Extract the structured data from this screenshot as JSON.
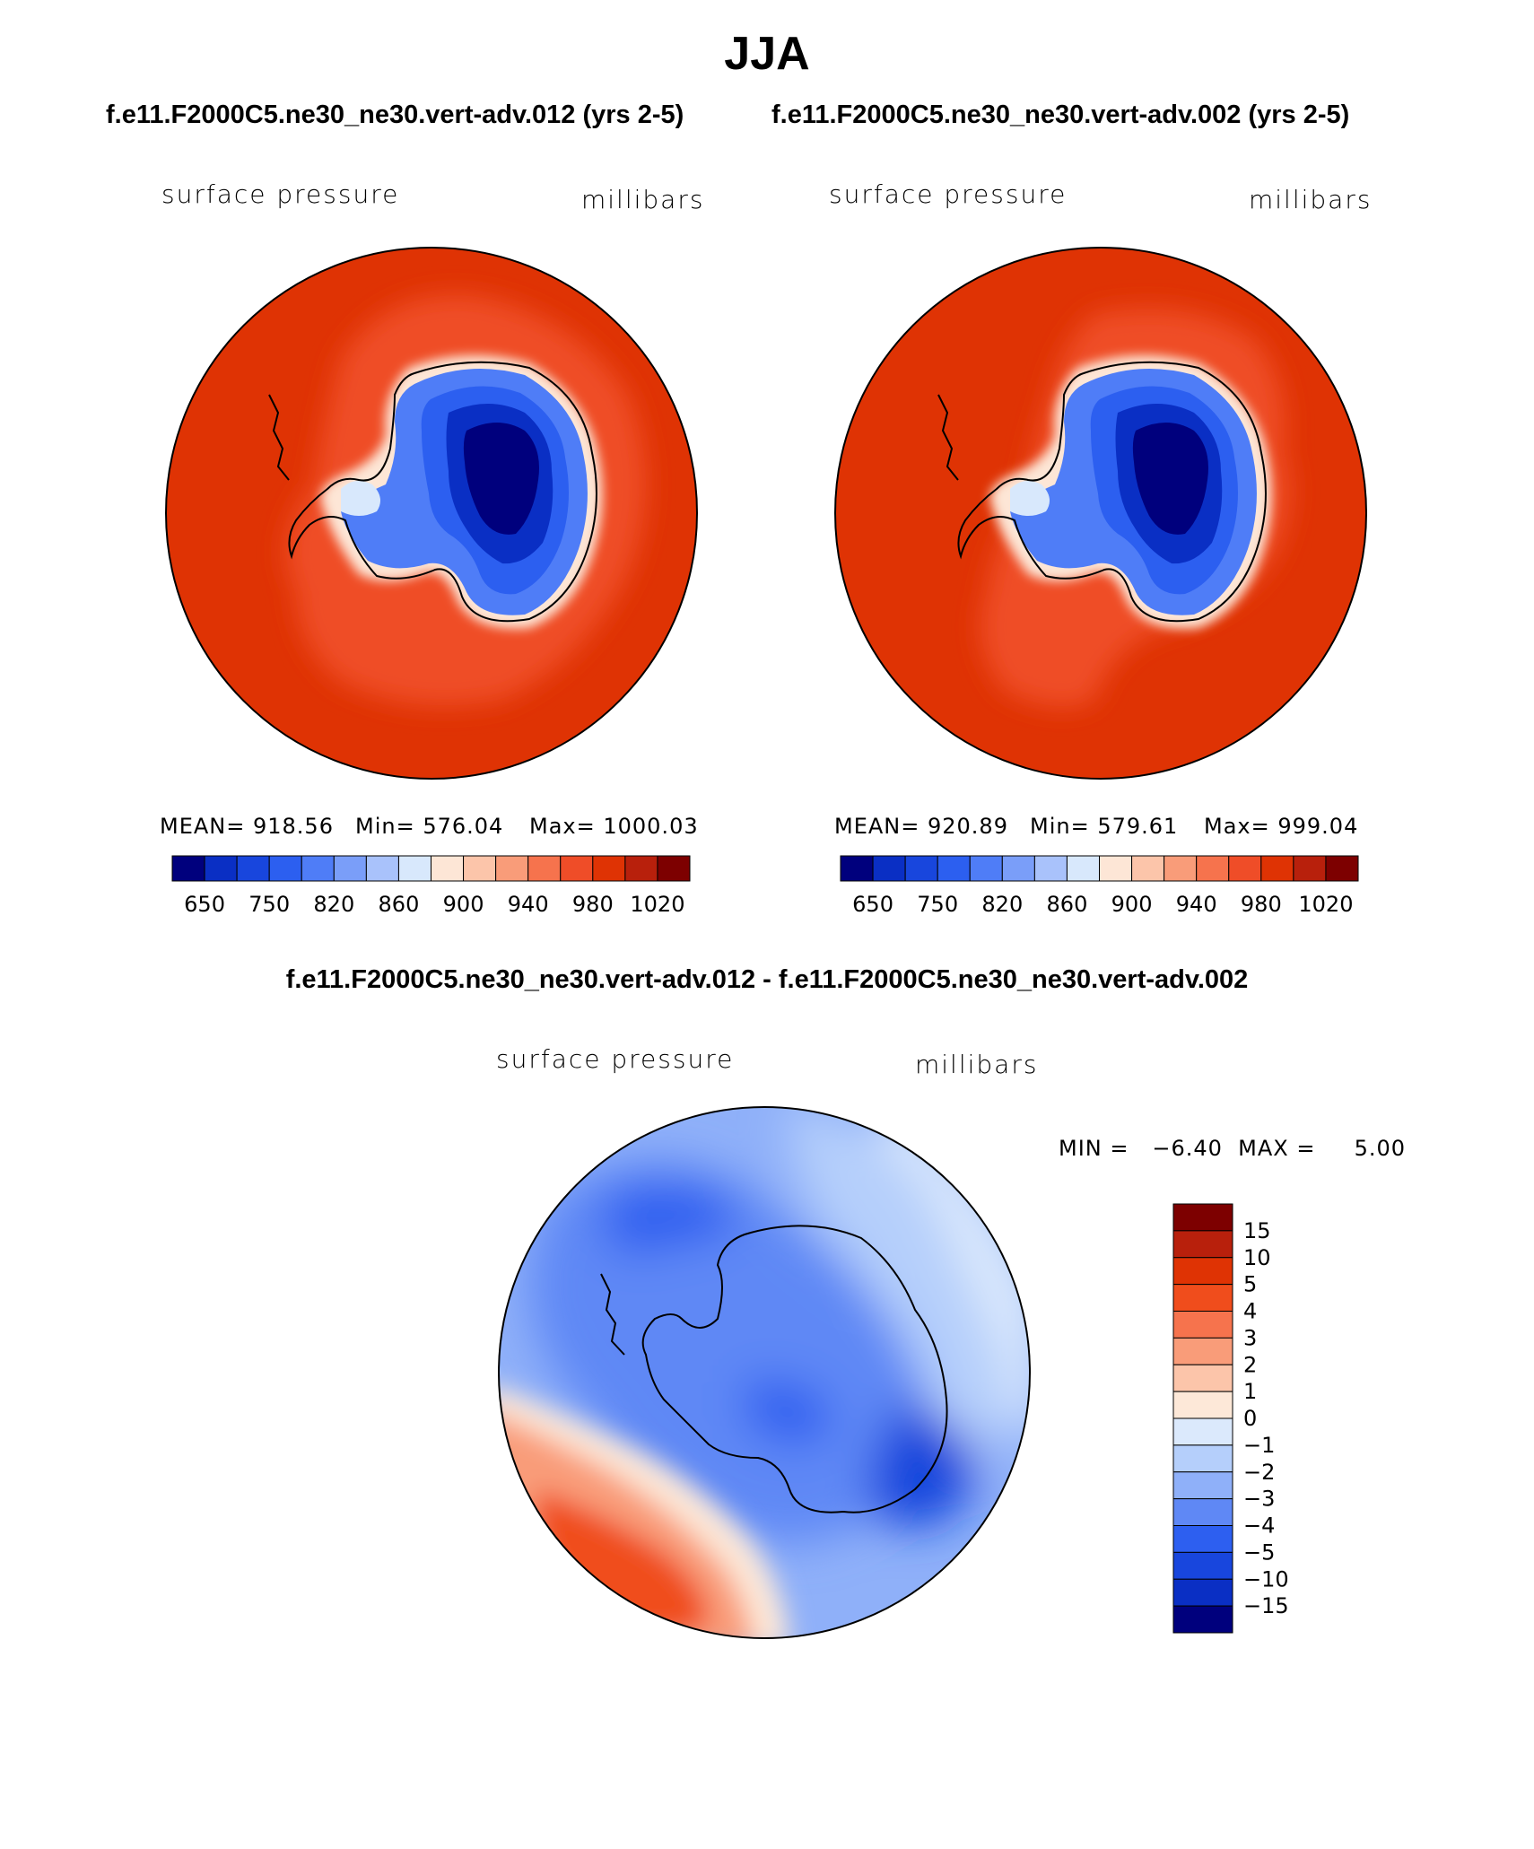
{
  "title": "JJA",
  "subtitle_left": "f.e11.F2000C5.ne30_ne30.vert-adv.012 (yrs 2-5)",
  "subtitle_right": "f.e11.F2000C5.ne30_ne30.vert-adv.002 (yrs 2-5)",
  "diff_title": "f.e11.F2000C5.ne30_ne30.vert-adv.012 - f.e11.F2000C5.ne30_ne30.vert-adv.002",
  "panels": [
    {
      "left_label": "surface pressure",
      "right_label": "millibars",
      "mean": "MEAN= 918.56",
      "min": "Min= 576.04",
      "max": "Max= 1000.03"
    },
    {
      "left_label": "surface pressure",
      "right_label": "millibars",
      "mean": "MEAN= 920.89",
      "min": "Min= 579.61",
      "max": "Max= 999.04"
    },
    {
      "left_label": "surface pressure",
      "right_label": "millibars",
      "minmax": "MIN =   −6.40  MAX =     5.00"
    }
  ],
  "chart_data": [
    {
      "type": "heatmap",
      "projection": "south-polar stereographic",
      "title": "surface pressure",
      "units": "millibars",
      "mean": 918.56,
      "min": 576.04,
      "max": 1000.03,
      "colorbar_ticks": [
        "650",
        "750",
        "820",
        "860",
        "900",
        "940",
        "980",
        "1020"
      ],
      "colorbar_colors": [
        "#00007d",
        "#0a2fc4",
        "#1846dd",
        "#2c5ff0",
        "#4f7df7",
        "#7a9ef9",
        "#a9c2fb",
        "#d8e8fc",
        "#fde6d6",
        "#fcc5aa",
        "#f99c79",
        "#f6734d",
        "#ef4d28",
        "#df3304",
        "#b8200c",
        "#7d0000"
      ]
    },
    {
      "type": "heatmap",
      "projection": "south-polar stereographic",
      "title": "surface pressure",
      "units": "millibars",
      "mean": 920.89,
      "min": 579.61,
      "max": 999.04,
      "colorbar_ticks": [
        "650",
        "750",
        "820",
        "860",
        "900",
        "940",
        "980",
        "1020"
      ],
      "colorbar_colors": [
        "#00007d",
        "#0a2fc4",
        "#1846dd",
        "#2c5ff0",
        "#4f7df7",
        "#7a9ef9",
        "#a9c2fb",
        "#d8e8fc",
        "#fde6d6",
        "#fcc5aa",
        "#f99c79",
        "#f6734d",
        "#ef4d28",
        "#df3304",
        "#b8200c",
        "#7d0000"
      ]
    },
    {
      "type": "heatmap",
      "projection": "south-polar stereographic",
      "title": "surface pressure difference (012 - 002)",
      "units": "millibars",
      "min": -6.4,
      "max": 5.0,
      "colorbar_ticks": [
        "15",
        "10",
        "5",
        "4",
        "3",
        "2",
        "1",
        "0",
        "−1",
        "−2",
        "−3",
        "−4",
        "−5",
        "−10",
        "−15"
      ],
      "colorbar_colors_top_to_bottom": [
        "#7d0000",
        "#b8200c",
        "#df3304",
        "#f04d1c",
        "#f6734d",
        "#f99c79",
        "#fcc5aa",
        "#fde8d8",
        "#dbe9fc",
        "#b5cffb",
        "#8fb0f9",
        "#5f88f5",
        "#2d5ff0",
        "#1846dd",
        "#0a2fc4",
        "#00007d"
      ]
    }
  ]
}
